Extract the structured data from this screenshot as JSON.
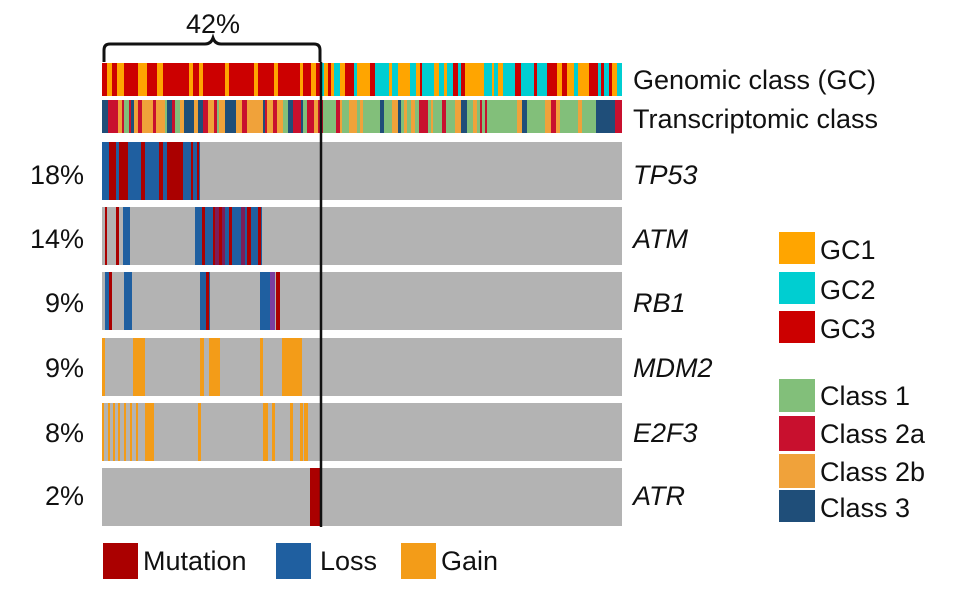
{
  "chart_data": {
    "type": "oncoprint",
    "bracket_label": "42%",
    "annotation_tracks": [
      {
        "name": "Genomic class (GC)"
      },
      {
        "name": "Transcriptomic class"
      }
    ],
    "genes": [
      {
        "name": "TP53",
        "pct": "18%"
      },
      {
        "name": "ATM",
        "pct": "14%"
      },
      {
        "name": "RB1",
        "pct": "9%"
      },
      {
        "name": "MDM2",
        "pct": "9%"
      },
      {
        "name": "E2F3",
        "pct": "8%"
      },
      {
        "name": "ATR",
        "pct": "2%"
      }
    ],
    "gc_legend": [
      {
        "label": "GC1",
        "color": "#FFA500"
      },
      {
        "label": "GC2",
        "color": "#00CED1"
      },
      {
        "label": "GC3",
        "color": "#CC0000"
      }
    ],
    "class_legend": [
      {
        "label": "Class 1",
        "color": "#82BF7A"
      },
      {
        "label": "Class 2a",
        "color": "#C8102E"
      },
      {
        "label": "Class 2b",
        "color": "#F0A23A"
      },
      {
        "label": "Class 3",
        "color": "#1F4E79"
      }
    ],
    "alteration_legend": [
      {
        "label": "Mutation",
        "color": "#AA0000"
      },
      {
        "label": "Loss",
        "color": "#1F5FA0"
      },
      {
        "label": "Gain",
        "color": "#F39C18"
      }
    ],
    "background_color": "#B3B3B3"
  }
}
